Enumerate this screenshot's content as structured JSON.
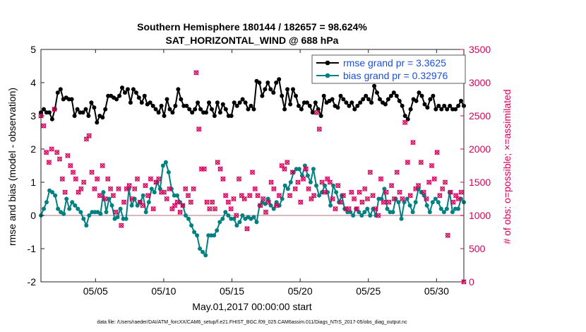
{
  "chart_data": {
    "type": "line",
    "title_line1": "Southern Hemisphere 180144 / 182657 = 98.624%",
    "title_line2": "SAT_HORIZONTAL_WIND @ 688 hPa",
    "xlabel": "May.01,2017 00:00:00 start",
    "ylabel_left": "rmse and bias (model - observation)",
    "ylabel_right": "# of obs: o=possible; ×=assimilated",
    "footer": "data file: /Users/raeder/DAI/ATM_forcXX/CAM6_setup/f.e21.FHIST_BGC.f09_025.CAM6assim.011/Diags_NTrS_2017-05/obs_diag_output.nc",
    "x_ticks": [
      {
        "day": 5,
        "label": "05/05"
      },
      {
        "day": 10,
        "label": "05/10"
      },
      {
        "day": 15,
        "label": "05/15"
      },
      {
        "day": 20,
        "label": "05/20"
      },
      {
        "day": 25,
        "label": "05/25"
      },
      {
        "day": 30,
        "label": "05/30"
      }
    ],
    "xlim": [
      1,
      32
    ],
    "ylim_left": [
      -2,
      5
    ],
    "ylim_right": [
      0,
      3500
    ],
    "y_ticks_left": [
      "-2",
      "-1",
      "0",
      "1",
      "2",
      "3",
      "4",
      "5"
    ],
    "y_ticks_right": [
      "0",
      "500",
      "1000",
      "1500",
      "2000",
      "2500",
      "3000",
      "3500"
    ],
    "legend": {
      "position": "top-right",
      "entries": [
        {
          "label": "rmse grand pr = 3.3625",
          "color": "#000000"
        },
        {
          "label": "bias grand pr = 0.32976",
          "color": "#008080"
        }
      ]
    },
    "colors": {
      "rmse": "#000000",
      "bias": "#008080",
      "obs": "#d6005a",
      "legend_text": "#1a4fd6",
      "zero_line": "#c8a0a8"
    },
    "series": [
      {
        "name": "rmse",
        "axis": "left",
        "values": [
          3.1,
          3.2,
          3.1,
          3.1,
          2.9,
          3.2,
          3.7,
          3.8,
          3.5,
          3.55,
          3.5,
          3.5,
          3.0,
          3.2,
          3.1,
          3.1,
          3.2,
          3.0,
          3.4,
          3.25,
          2.8,
          3.0,
          2.95,
          3.2,
          3.6,
          3.6,
          3.55,
          3.5,
          3.6,
          3.85,
          3.7,
          3.8,
          3.4,
          3.8,
          3.7,
          3.55,
          3.4,
          3.6,
          3.35,
          3.4,
          3.3,
          3.2,
          3.1,
          3.3,
          3.0,
          3.5,
          3.2,
          3.1,
          3.3,
          3.8,
          3.5,
          3.3,
          3.3,
          3.2,
          3.1,
          3.2,
          3.4,
          3.2,
          3.1,
          3.1,
          3.4,
          3.2,
          3.0,
          3.4,
          3.1,
          3.35,
          3.2,
          3.0,
          3.0,
          3.4,
          3.3,
          3.4,
          3.5,
          3.4,
          3.2,
          3.3,
          3.2,
          4.05,
          4.0,
          3.6,
          3.8,
          4.0,
          3.8,
          3.7,
          4.0,
          4.1,
          3.6,
          3.2,
          3.8,
          3.35,
          3.8,
          3.6,
          3.3,
          3.2,
          3.4,
          3.4,
          3.3,
          3.1,
          3.4,
          3.2,
          3.0,
          3.6,
          3.4,
          3.45,
          3.5,
          3.3,
          3.25,
          3.6,
          3.5,
          3.4,
          3.3,
          3.4,
          3.2,
          3.3,
          3.4,
          3.5,
          3.6,
          3.5,
          3.4,
          3.9,
          3.7,
          3.5,
          3.4,
          3.35,
          3.5,
          3.6,
          3.7,
          3.6,
          3.45,
          3.3,
          3.0,
          2.9,
          3.2,
          3.5,
          3.45,
          3.7,
          3.6,
          3.35,
          3.25,
          3.5,
          3.6,
          3.2,
          3.3,
          3.2,
          3.3,
          3.2,
          3.3,
          3.2,
          3.2,
          3.3,
          3.45,
          3.3
        ]
      },
      {
        "name": "bias",
        "axis": "left",
        "values": [
          0.0,
          0.2,
          0.4,
          0.75,
          0.7,
          0.6,
          0.2,
          0.1,
          0.05,
          0.5,
          0.2,
          0.4,
          0.3,
          0.2,
          0.1,
          -0.1,
          -0.3,
          0.0,
          0.1,
          0.1,
          0.1,
          0.05,
          0.7,
          0.1,
          0.5,
          0.3,
          -0.1,
          -0.05,
          0.2,
          -0.1,
          -0.1,
          0.8,
          0.3,
          0.5,
          0.3,
          0.4,
          0.6,
          0.1,
          0.4,
          0.8,
          0.7,
          1.0,
          0.8,
          1.5,
          1.6,
          1.3,
          0.8,
          0.6,
          0.6,
          0.4,
          0.3,
          0.0,
          -0.1,
          -0.3,
          -0.5,
          -0.6,
          -1.0,
          -1.1,
          -1.2,
          -0.6,
          -0.6,
          -0.6,
          -0.45,
          -0.2,
          -0.1,
          0.1,
          0.0,
          -0.1,
          -0.1,
          -0.3,
          -0.2,
          0.0,
          -0.1,
          -0.05,
          -0.1,
          -0.05,
          -0.2,
          0.3,
          0.4,
          0.35,
          0.5,
          0.3,
          0.2,
          0.4,
          0.3,
          0.5,
          0.9,
          0.8,
          1.0,
          1.3,
          1.4,
          1.4,
          1.2,
          1.5,
          1.2,
          1.0,
          1.4,
          0.9,
          0.6,
          0.7,
          0.9,
          0.7,
          0.3,
          0.9,
          0.7,
          0.4,
          0.6,
          0.2,
          0.1,
          0.1,
          0.0,
          0.2,
          0.1,
          0.0,
          0.1,
          0.2,
          0.0,
          0.2,
          0.0,
          0.5,
          0.5,
          0.8,
          0.2,
          0.1,
          0.1,
          0.5,
          0.4,
          -0.1,
          0.4,
          0.5,
          0.3,
          0.1,
          0.4,
          0.8,
          0.7,
          0.6,
          0.3,
          0.1,
          0.4,
          0.5,
          0.4,
          0.2,
          0.1,
          0.2,
          0.7,
          0.1,
          0.2,
          0.2,
          0.5,
          0.4
        ]
      },
      {
        "name": "obs",
        "axis": "right",
        "values": [
          2500,
          2350,
          1950,
          1800,
          2000,
          2600,
          1950,
          1850,
          1550,
          1350,
          1900,
          1750,
          1650,
          1550,
          1350,
          1400,
          1500,
          2150,
          2200,
          1650,
          1400,
          1550,
          1300,
          1750,
          1250,
          1550,
          1400,
          1300,
          1050,
          1400,
          850,
          1200,
          1400,
          1450,
          1250,
          1400,
          1550,
          1200,
          1150,
          1450,
          1300,
          1550,
          1100,
          1500,
          1550,
          1350,
          1350,
          1250,
          1400,
          1100,
          1150,
          1200,
          1050,
          1150,
          1400,
          1300,
          1200,
          1400,
          3150,
          2300,
          1700,
          1700,
          1200,
          1100,
          1200,
          1100,
          1800,
          1700,
          1550,
          1300,
          1200,
          1100,
          1250,
          1000,
          1550,
          1300,
          1250,
          800,
          1300,
          1650,
          1400,
          1300,
          1150,
          1250,
          1050,
          1200,
          1500,
          1400,
          1150,
          1300,
          1750,
          1700,
          1800,
          1300,
          1650,
          1400,
          1500,
          1200,
          1550,
          1700,
          1400,
          1250,
          1300,
          2550,
          2300,
          1500,
          1350,
          1550,
          1500,
          1250,
          1100,
          1450,
          1200,
          1300,
          1100,
          1100,
          1350,
          1250,
          1100,
          1350,
          1200,
          1400,
          1250,
          1650,
          1300,
          1100,
          1000,
          1550,
          1200,
          1350,
          1200,
          1450,
          1250,
          1650,
          1350,
          1250,
          2400,
          1800,
          1300,
          2100,
          1400,
          1450,
          1800,
          1350,
          1250,
          1500,
          1750,
          1550,
          1950,
          1300,
          1400,
          1500,
          700,
          1350,
          1200,
          1300,
          1250,
          1350,
          0
        ]
      }
    ]
  }
}
